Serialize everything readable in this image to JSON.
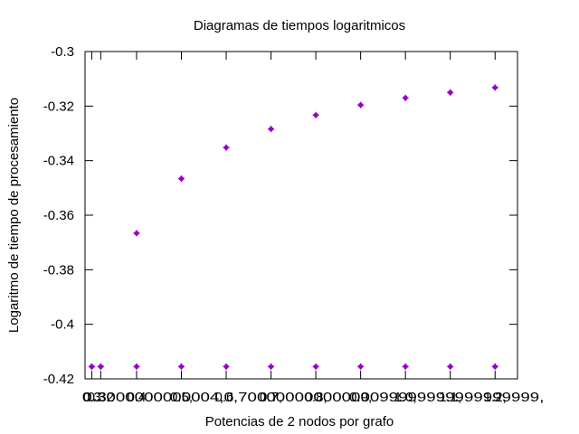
{
  "chart_data": {
    "type": "scatter",
    "title": "Diagramas de tiempos logaritmicos",
    "xlabel": "Potencias de 2 nodos por grafo",
    "ylabel": "Logaritmo de tiempo de procesamiento",
    "ylim": [
      -0.42,
      -0.3
    ],
    "xlim": [
      0.285,
      1.25
    ],
    "grid": false,
    "legend": "none",
    "y_ticks": [
      -0.3,
      -0.32,
      -0.34,
      -0.36,
      -0.38,
      -0.4,
      -0.42
    ],
    "y_tick_labels": [
      "-0.3",
      "-0.32",
      "-0.34",
      "-0.36",
      "-0.38",
      "-0.4",
      "-0.42"
    ],
    "x_ticks": [
      0.3,
      0.32,
      0.4,
      0.5,
      0.6,
      0.7,
      0.8,
      0.9,
      1.0,
      1.1,
      1.2
    ],
    "x_tick_labels": [
      "0.3",
      "0.32",
      "0.4",
      "0.5,",
      "0.6,",
      "0.7,",
      "0.8,",
      "0.9,",
      "1.0,",
      "1.1,",
      "1.2,"
    ],
    "x_tick_overlay_text": "0.3000000000004,0.70000000000000099999999999999999,",
    "x": [
      0.3,
      0.32,
      0.4,
      0.5,
      0.6,
      0.7,
      0.8,
      0.9,
      1.0,
      1.1,
      1.2
    ],
    "series": [
      {
        "values": [
          -0.4155,
          -0.4155,
          -0.3666,
          -0.3466,
          -0.3352,
          -0.3284,
          -0.3233,
          -0.3196,
          -0.317,
          -0.315,
          -0.3132
        ]
      },
      {
        "values": [
          -0.4155,
          -0.4155,
          -0.4155,
          -0.4155,
          -0.4155,
          -0.4155,
          -0.4155,
          -0.4155,
          -0.4155,
          -0.4155,
          -0.4155
        ]
      }
    ],
    "marker_color": "#9400d3"
  }
}
